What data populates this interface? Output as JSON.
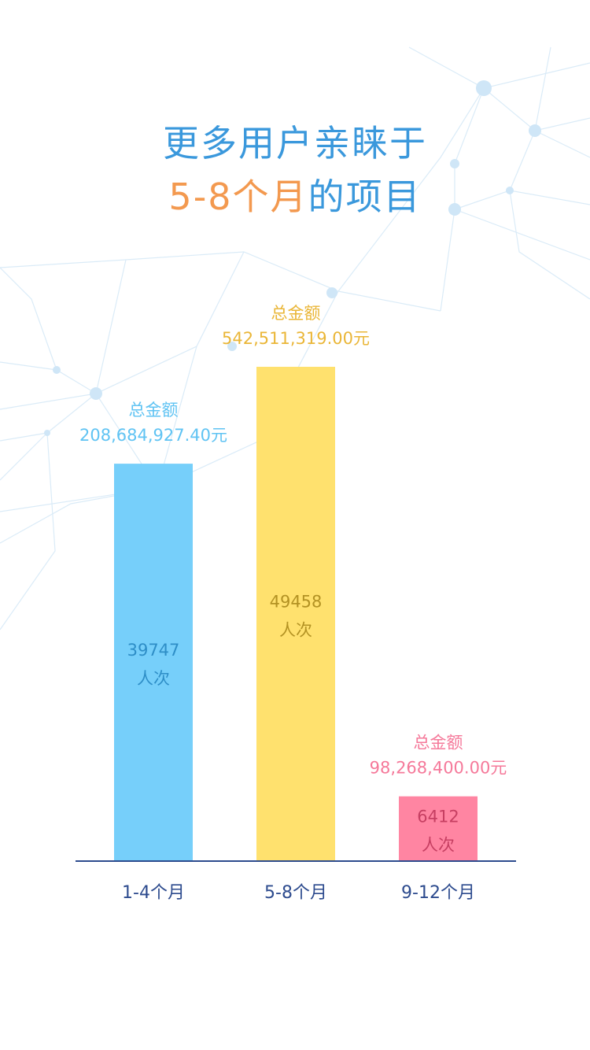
{
  "title": {
    "line1": "更多用户亲睐于",
    "line2_highlight": "5-8个月",
    "line2_rest": "的项目"
  },
  "colors": {
    "title_blue": "#3a98dc",
    "title_orange": "#f3994f",
    "axis": "#2d4b8e",
    "category_text": "#2d4b8e"
  },
  "chart_data": {
    "type": "bar",
    "categories": [
      "1-4个月",
      "5-8个月",
      "9-12个月"
    ],
    "series": [
      {
        "values": [
          39747,
          49458,
          6412
        ],
        "value_unit": "人次",
        "totals": [
          "208,684,927.40元",
          "542,511,319.00元",
          "98,268,400.00元"
        ],
        "total_label": "总金额"
      }
    ],
    "bar_colors": [
      "#76cffa",
      "#ffe16e",
      "#ff85a2"
    ],
    "label_colors": [
      "#5fc3f3",
      "#eab637",
      "#f5799a"
    ],
    "inner_label_colors": [
      "#2e8ec7",
      "#b39223",
      "#c63f62"
    ],
    "ylim": [
      0,
      49458
    ],
    "grid": false,
    "xlabel": "",
    "ylabel": ""
  }
}
